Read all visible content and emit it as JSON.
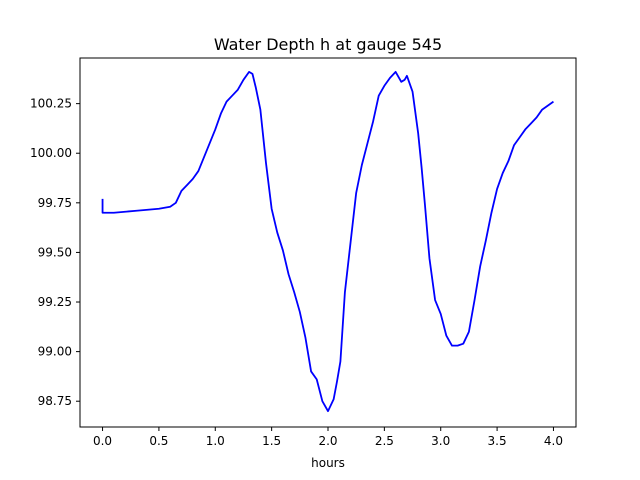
{
  "chart_data": {
    "type": "line",
    "title": "Water Depth h at gauge 545",
    "xlabel": "hours",
    "ylabel": "",
    "xlim": [
      -0.2,
      4.2
    ],
    "ylim": [
      98.62,
      100.48
    ],
    "xticks": [
      0.0,
      0.5,
      1.0,
      1.5,
      2.0,
      2.5,
      3.0,
      3.5,
      4.0
    ],
    "xtick_labels": [
      "0.0",
      "0.5",
      "1.0",
      "1.5",
      "2.0",
      "2.5",
      "3.0",
      "3.5",
      "4.0"
    ],
    "yticks": [
      98.75,
      99.0,
      99.25,
      99.5,
      99.75,
      100.0,
      100.25
    ],
    "ytick_labels": [
      "98.75",
      "99.00",
      "99.25",
      "99.50",
      "99.75",
      "100.00",
      "100.25"
    ],
    "grid": false,
    "series": [
      {
        "color": "#0000ff",
        "x": [
          0.0,
          0.0,
          0.01,
          0.1,
          0.2,
          0.3,
          0.4,
          0.5,
          0.6,
          0.65,
          0.7,
          0.75,
          0.8,
          0.85,
          0.9,
          0.95,
          1.0,
          1.05,
          1.1,
          1.15,
          1.2,
          1.25,
          1.3,
          1.33,
          1.36,
          1.4,
          1.45,
          1.5,
          1.55,
          1.6,
          1.65,
          1.7,
          1.75,
          1.8,
          1.85,
          1.9,
          1.95,
          2.0,
          2.05,
          2.08,
          2.11,
          2.15,
          2.2,
          2.25,
          2.3,
          2.35,
          2.4,
          2.45,
          2.5,
          2.55,
          2.6,
          2.65,
          2.68,
          2.7,
          2.75,
          2.8,
          2.83,
          2.86,
          2.9,
          2.95,
          3.0,
          3.05,
          3.1,
          3.15,
          3.2,
          3.25,
          3.3,
          3.35,
          3.4,
          3.45,
          3.5,
          3.55,
          3.6,
          3.65,
          3.7,
          3.75,
          3.8,
          3.85,
          3.9,
          3.95,
          4.0
        ],
        "y": [
          99.77,
          99.7,
          99.7,
          99.7,
          99.705,
          99.71,
          99.715,
          99.72,
          99.73,
          99.75,
          99.81,
          99.84,
          99.87,
          99.91,
          99.98,
          100.05,
          100.12,
          100.2,
          100.26,
          100.29,
          100.32,
          100.37,
          100.41,
          100.4,
          100.33,
          100.22,
          99.95,
          99.72,
          99.6,
          99.51,
          99.39,
          99.3,
          99.2,
          99.07,
          98.9,
          98.86,
          98.75,
          98.7,
          98.76,
          98.85,
          98.95,
          99.3,
          99.55,
          99.8,
          99.94,
          100.05,
          100.16,
          100.29,
          100.34,
          100.38,
          100.41,
          100.36,
          100.37,
          100.39,
          100.31,
          100.1,
          99.93,
          99.74,
          99.47,
          99.26,
          99.19,
          99.08,
          99.03,
          99.03,
          99.04,
          99.1,
          99.26,
          99.43,
          99.56,
          99.7,
          99.82,
          99.9,
          99.96,
          100.04,
          100.08,
          100.12,
          100.15,
          100.18,
          100.22,
          100.24,
          100.26
        ]
      }
    ]
  }
}
